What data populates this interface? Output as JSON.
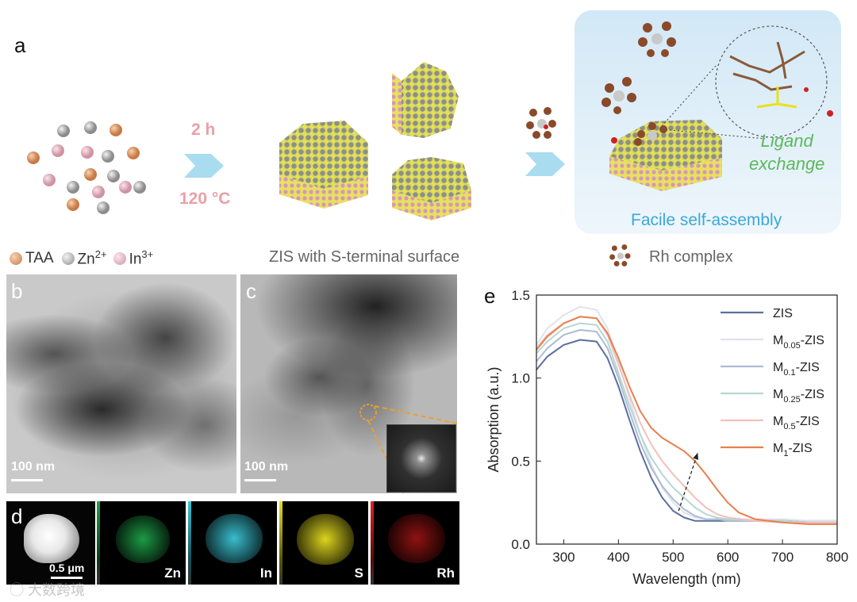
{
  "panel_labels": {
    "a": "a",
    "b": "b",
    "c": "c",
    "d": "d",
    "e": "e"
  },
  "panel_a": {
    "step1_time": "2 h",
    "step1_temp": "120 °C",
    "legend": {
      "taa": "TAA",
      "zn": "Zn",
      "zn_sup": "2+",
      "in": "In",
      "in_sup": "3+"
    },
    "zis_caption": "ZIS with S-terminal surface",
    "ligand_exchange": [
      "Ligand",
      "exchange"
    ],
    "facile": "Facile self-assembly",
    "rh_caption": "Rh complex",
    "colors": {
      "taa": "#d9935e",
      "zn": "#a8a8a8",
      "in": "#e4b3bf",
      "sulfur": "#e8e84a",
      "arrow": "#a9dcef",
      "pink_text": "#e9a0a8",
      "green_text": "#5cb85c",
      "blue_text": "#3aa8d8",
      "assembly_bg": "#dcecf7"
    }
  },
  "panel_b": {
    "scale": "100 nm"
  },
  "panel_c": {
    "scale": "100 nm"
  },
  "panel_d": {
    "scale": "0.5 μm",
    "maps": [
      {
        "label": "Zn",
        "color": "#1fa34a"
      },
      {
        "label": "In",
        "color": "#3cc8d8"
      },
      {
        "label": "S",
        "color": "#e8e020"
      },
      {
        "label": "Rh",
        "color": "#c01818"
      }
    ]
  },
  "chart_data": {
    "type": "line",
    "xlabel": "Wavelength (nm)",
    "ylabel": "Absorption (a.u.)",
    "xlim": [
      250,
      800
    ],
    "ylim": [
      0,
      1.5
    ],
    "xticks": [
      300,
      400,
      500,
      600,
      700,
      800
    ],
    "yticks": [
      "0.0",
      "0.5",
      "1.0",
      "1.5"
    ],
    "legend_position": "top-right",
    "series": [
      {
        "name": "ZIS",
        "base": "M",
        "sub": "",
        "color": "#5b6f9e",
        "x": [
          250,
          270,
          300,
          330,
          360,
          380,
          400,
          420,
          440,
          460,
          480,
          500,
          520,
          540,
          560,
          580,
          600,
          650,
          700,
          750,
          800
        ],
        "y": [
          1.05,
          1.13,
          1.2,
          1.23,
          1.22,
          1.12,
          0.95,
          0.75,
          0.56,
          0.4,
          0.28,
          0.2,
          0.16,
          0.14,
          0.14,
          0.14,
          0.14,
          0.14,
          0.14,
          0.14,
          0.14
        ]
      },
      {
        "name": "M0.05-ZIS",
        "base": "M",
        "sub": "0.05",
        "color": "#dde3ee",
        "x": [
          250,
          270,
          300,
          330,
          360,
          380,
          400,
          420,
          440,
          460,
          480,
          500,
          520,
          540,
          560,
          580,
          600,
          650,
          700,
          750,
          800
        ],
        "y": [
          1.2,
          1.3,
          1.38,
          1.43,
          1.41,
          1.3,
          1.1,
          0.88,
          0.66,
          0.48,
          0.34,
          0.25,
          0.19,
          0.16,
          0.15,
          0.15,
          0.15,
          0.15,
          0.15,
          0.14,
          0.14
        ]
      },
      {
        "name": "M0.1-ZIS",
        "base": "M",
        "sub": "0.1",
        "color": "#aebbd4",
        "x": [
          250,
          270,
          300,
          330,
          360,
          380,
          400,
          420,
          440,
          460,
          480,
          500,
          520,
          540,
          560,
          580,
          600,
          650,
          700,
          750,
          800
        ],
        "y": [
          1.1,
          1.18,
          1.26,
          1.29,
          1.28,
          1.18,
          1.0,
          0.8,
          0.61,
          0.46,
          0.35,
          0.27,
          0.21,
          0.17,
          0.15,
          0.15,
          0.14,
          0.14,
          0.14,
          0.13,
          0.13
        ]
      },
      {
        "name": "M0.25-ZIS",
        "base": "M",
        "sub": "0.25",
        "color": "#b5d8d2",
        "x": [
          250,
          270,
          300,
          330,
          360,
          380,
          400,
          420,
          440,
          460,
          480,
          500,
          520,
          540,
          560,
          580,
          600,
          650,
          700,
          750,
          800
        ],
        "y": [
          1.15,
          1.22,
          1.3,
          1.33,
          1.32,
          1.22,
          1.03,
          0.84,
          0.66,
          0.52,
          0.42,
          0.34,
          0.28,
          0.22,
          0.18,
          0.16,
          0.15,
          0.14,
          0.14,
          0.13,
          0.13
        ]
      },
      {
        "name": "M0.5-ZIS",
        "base": "M",
        "sub": "0.5",
        "color": "#f2c0bc",
        "x": [
          250,
          270,
          300,
          330,
          360,
          380,
          400,
          420,
          440,
          460,
          480,
          500,
          520,
          540,
          560,
          580,
          600,
          650,
          700,
          750,
          800
        ],
        "y": [
          1.18,
          1.26,
          1.33,
          1.37,
          1.36,
          1.26,
          1.08,
          0.9,
          0.73,
          0.6,
          0.5,
          0.42,
          0.35,
          0.28,
          0.22,
          0.18,
          0.16,
          0.14,
          0.13,
          0.13,
          0.13
        ]
      },
      {
        "name": "M1-ZIS",
        "base": "M",
        "sub": "1",
        "color": "#e8804e",
        "x": [
          250,
          270,
          300,
          330,
          360,
          380,
          400,
          420,
          440,
          460,
          480,
          500,
          520,
          540,
          560,
          580,
          600,
          620,
          650,
          700,
          750,
          800
        ],
        "y": [
          1.17,
          1.25,
          1.33,
          1.37,
          1.36,
          1.27,
          1.12,
          0.95,
          0.8,
          0.7,
          0.64,
          0.6,
          0.56,
          0.5,
          0.42,
          0.33,
          0.25,
          0.19,
          0.15,
          0.13,
          0.12,
          0.12
        ]
      }
    ],
    "annotation": {
      "type": "arrow",
      "from": [
        510,
        0.2
      ],
      "to": [
        545,
        0.55
      ]
    }
  },
  "watermark": "大数跨境"
}
